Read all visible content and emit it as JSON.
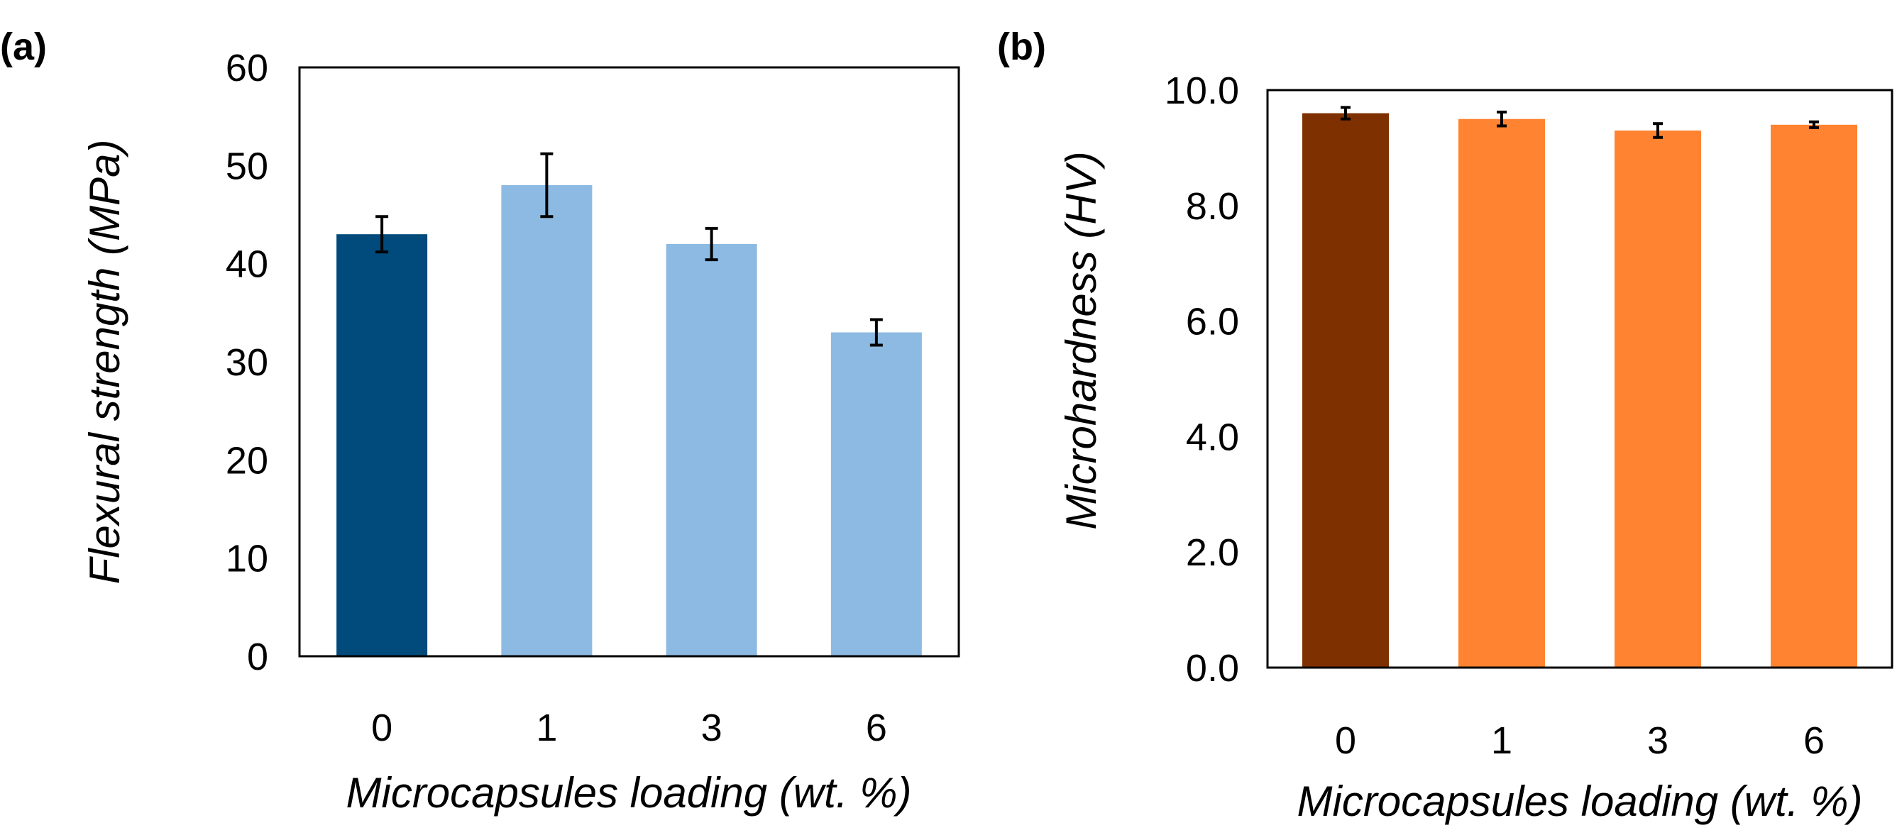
{
  "figure": {
    "panels": [
      "(a)",
      "(b)"
    ]
  },
  "chart_data": [
    {
      "type": "bar",
      "panel_label": "(a)",
      "categories": [
        "0",
        "1",
        "3",
        "6"
      ],
      "values": [
        43,
        48,
        42,
        33
      ],
      "errors": [
        1.8,
        3.2,
        1.6,
        1.3
      ],
      "colors": [
        "#004A7C",
        "#8DBAE2",
        "#8DBAE2",
        "#8DBAE2"
      ],
      "ylim": [
        0,
        60
      ],
      "yticks": [
        "0",
        "10",
        "20",
        "30",
        "40",
        "50",
        "60"
      ],
      "ytick_values": [
        0,
        10,
        20,
        30,
        40,
        50,
        60
      ],
      "xlabel": "Microcapsules loading (wt. %)",
      "ylabel": "Flexural strength (MPa)",
      "grid": false
    },
    {
      "type": "bar",
      "panel_label": "(b)",
      "categories": [
        "0",
        "1",
        "3",
        "6"
      ],
      "values": [
        9.6,
        9.5,
        9.3,
        9.4
      ],
      "errors": [
        0.1,
        0.12,
        0.12,
        0.05
      ],
      "colors": [
        "#7F3000",
        "#FF8331",
        "#FF8331",
        "#FF8331"
      ],
      "ylim": [
        0,
        10
      ],
      "yticks": [
        "0.0",
        "2.0",
        "4.0",
        "6.0",
        "8.0",
        "10.0"
      ],
      "ytick_values": [
        0,
        2,
        4,
        6,
        8,
        10
      ],
      "xlabel": "Microcapsules loading (wt. %)",
      "ylabel": "Microhardness (HV)",
      "grid": false
    }
  ]
}
